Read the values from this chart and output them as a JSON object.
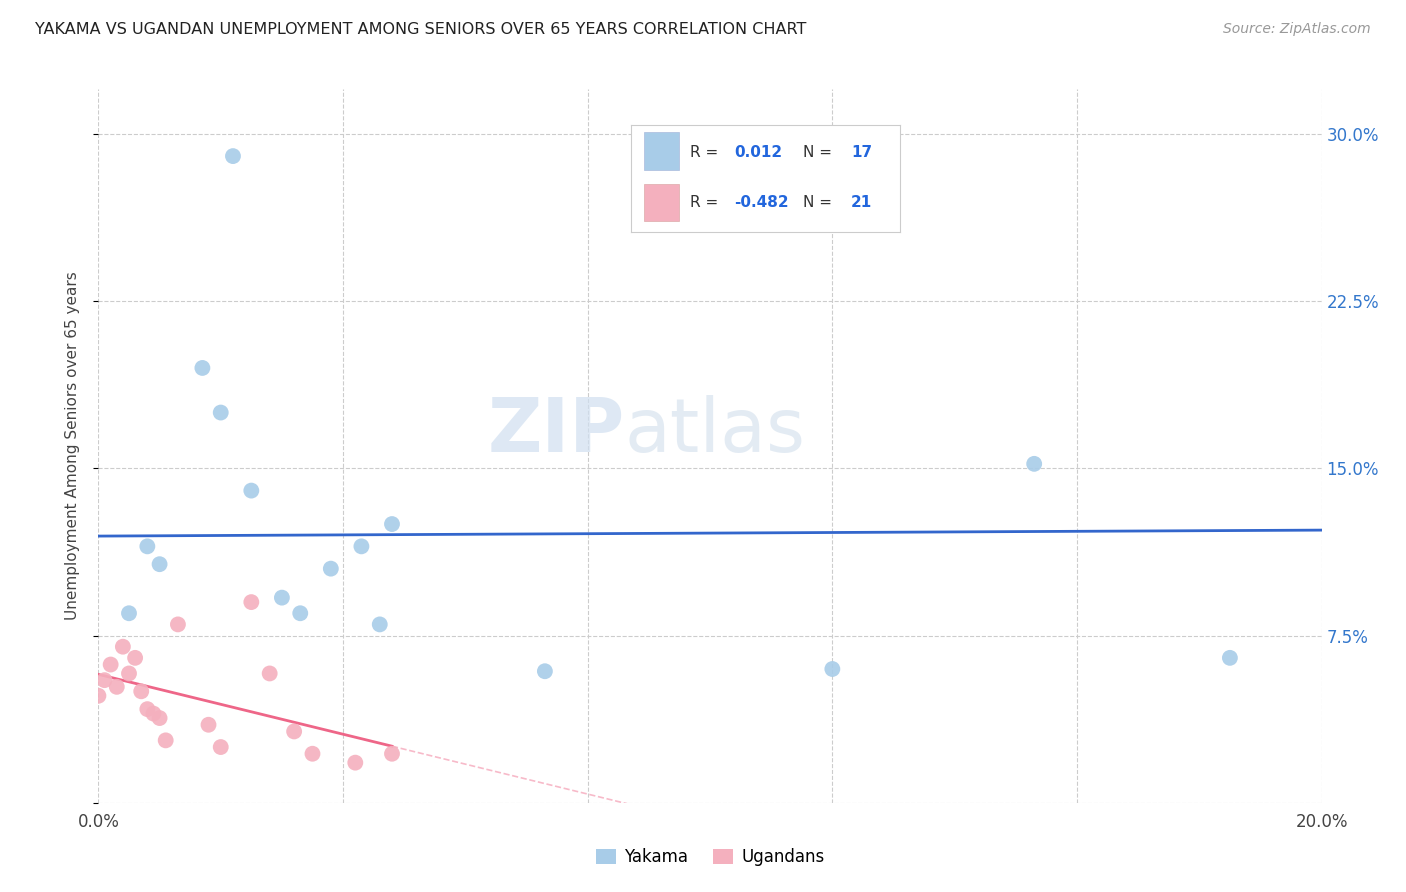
{
  "title": "YAKAMA VS UGANDAN UNEMPLOYMENT AMONG SENIORS OVER 65 YEARS CORRELATION CHART",
  "source": "Source: ZipAtlas.com",
  "ylabel": "Unemployment Among Seniors over 65 years",
  "xlim": [
    0.0,
    0.2
  ],
  "ylim": [
    0.0,
    0.32
  ],
  "xticks": [
    0.0,
    0.04,
    0.08,
    0.12,
    0.16,
    0.2
  ],
  "yticks": [
    0.0,
    0.075,
    0.15,
    0.225,
    0.3
  ],
  "yakama_R": 0.012,
  "yakama_N": 17,
  "ugandan_R": -0.482,
  "ugandan_N": 21,
  "yakama_color": "#a8cce8",
  "ugandan_color": "#f4b0be",
  "yakama_line_color": "#3366cc",
  "ugandan_line_color": "#ee6688",
  "watermark_zip": "ZIP",
  "watermark_atlas": "atlas",
  "yakama_x": [
    0.008,
    0.017,
    0.02,
    0.022,
    0.025,
    0.03,
    0.033,
    0.038,
    0.043,
    0.046,
    0.048,
    0.005,
    0.01,
    0.073,
    0.12,
    0.153,
    0.185
  ],
  "yakama_y": [
    0.115,
    0.195,
    0.175,
    0.29,
    0.14,
    0.092,
    0.085,
    0.105,
    0.115,
    0.08,
    0.125,
    0.085,
    0.107,
    0.059,
    0.06,
    0.152,
    0.065
  ],
  "ugandan_x": [
    0.0,
    0.001,
    0.002,
    0.003,
    0.004,
    0.005,
    0.006,
    0.007,
    0.008,
    0.009,
    0.01,
    0.011,
    0.013,
    0.018,
    0.02,
    0.025,
    0.028,
    0.032,
    0.035,
    0.042,
    0.048
  ],
  "ugandan_y": [
    0.048,
    0.055,
    0.062,
    0.052,
    0.07,
    0.058,
    0.065,
    0.05,
    0.042,
    0.04,
    0.038,
    0.028,
    0.08,
    0.035,
    0.025,
    0.09,
    0.058,
    0.032,
    0.022,
    0.018,
    0.022
  ]
}
